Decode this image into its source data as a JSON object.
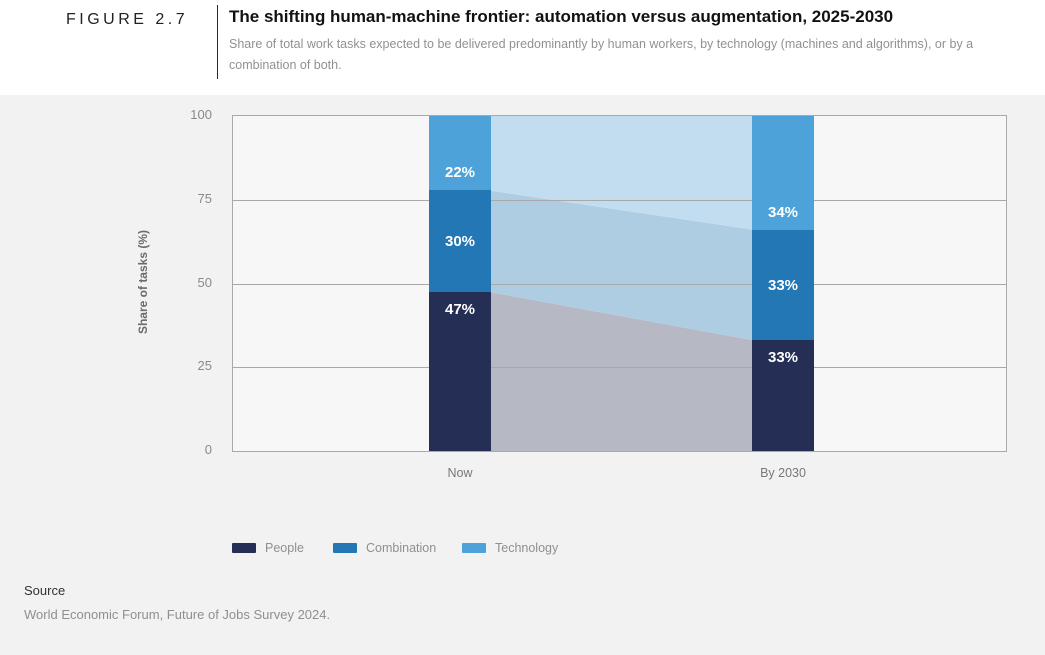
{
  "figure": {
    "label": "FIGURE 2.7",
    "title": "The shifting human-machine frontier: automation versus augmentation, 2025-2030",
    "subtitle": "Share of total work tasks expected to be delivered predominantly by human workers, by technology (machines and algorithms), or by a combination of both."
  },
  "chart_data": {
    "type": "bar",
    "subtype": "stacked-bars-with-flow-bands",
    "categories": [
      "Now",
      "By 2030"
    ],
    "series": [
      {
        "name": "People",
        "values": [
          47,
          33
        ],
        "color": "#252e54",
        "flow_color": "#b6b8c3",
        "label_pos": "top"
      },
      {
        "name": "Combination",
        "values": [
          30,
          33
        ],
        "color": "#2277b4",
        "flow_color": "#aecde3",
        "label_pos": "center"
      },
      {
        "name": "Technology",
        "values": [
          22,
          34
        ],
        "color": "#4da3d9",
        "flow_color": "#c3ddf0",
        "label_pos": "bottom"
      }
    ],
    "value_labels": {
      "now": [
        "47%",
        "30%",
        "22%"
      ],
      "by_2030": [
        "33%",
        "33%",
        "34%"
      ]
    },
    "value_suffix": "%",
    "ylabel": "Share of tasks (%)",
    "yticks": [
      0,
      25,
      50,
      75,
      100
    ],
    "ylim": [
      0,
      100
    ],
    "grid": "horizontal",
    "legend_position": "bottom",
    "colors": {
      "panel_background": "#f2f2f3",
      "plot_background": "#f7f7f7",
      "grid_and_border": "#a9a9a9"
    }
  },
  "source": {
    "heading": "Source",
    "text": "World Economic Forum, Future of Jobs Survey 2024."
  }
}
